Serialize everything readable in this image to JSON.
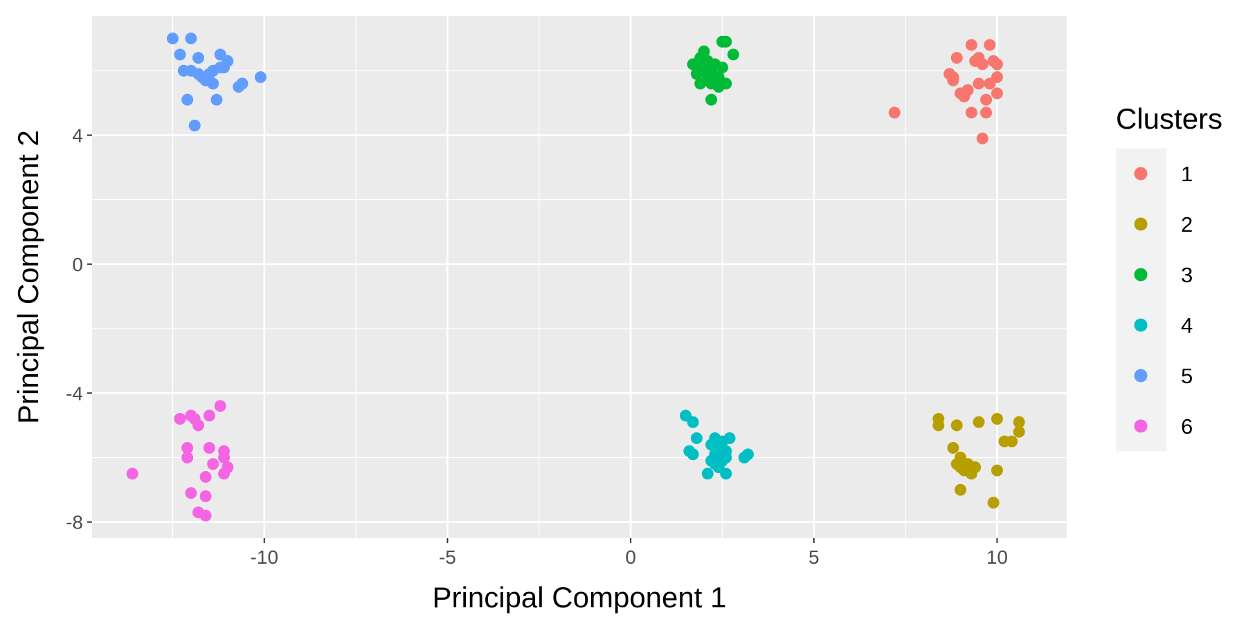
{
  "chart_data": {
    "type": "scatter",
    "title": "",
    "xlabel": "Principal Component 1",
    "ylabel": "Principal Component 2",
    "xlim": [
      -14.7,
      11.9
    ],
    "ylim": [
      -8.5,
      7.7
    ],
    "x_ticks": [
      -10,
      -5,
      0,
      5,
      10
    ],
    "y_ticks": [
      -8,
      -4,
      0,
      4
    ],
    "grid": true,
    "legend": {
      "title": "Clusters",
      "placement": "right"
    },
    "series": [
      {
        "name": "1",
        "color": "#F8766D",
        "points": [
          [
            7.2,
            4.7
          ],
          [
            8.7,
            5.9
          ],
          [
            8.8,
            5.7
          ],
          [
            8.9,
            6.4
          ],
          [
            8.8,
            5.8
          ],
          [
            9.0,
            5.3
          ],
          [
            9.1,
            5.2
          ],
          [
            9.2,
            5.4
          ],
          [
            9.3,
            6.8
          ],
          [
            9.3,
            4.7
          ],
          [
            9.4,
            6.3
          ],
          [
            9.5,
            6.4
          ],
          [
            9.6,
            3.9
          ],
          [
            9.6,
            6.2
          ],
          [
            9.7,
            4.7
          ],
          [
            9.7,
            5.1
          ],
          [
            9.8,
            5.6
          ],
          [
            9.8,
            6.8
          ],
          [
            9.9,
            6.3
          ],
          [
            10.0,
            5.3
          ],
          [
            10.0,
            6.2
          ],
          [
            10.0,
            5.8
          ],
          [
            9.5,
            5.6
          ]
        ]
      },
      {
        "name": "2",
        "color": "#B79F00",
        "points": [
          [
            8.4,
            -4.8
          ],
          [
            8.4,
            -5.0
          ],
          [
            8.8,
            -5.7
          ],
          [
            8.9,
            -5.0
          ],
          [
            8.9,
            -6.2
          ],
          [
            9.0,
            -6.0
          ],
          [
            9.1,
            -6.4
          ],
          [
            9.0,
            -7.0
          ],
          [
            9.2,
            -6.2
          ],
          [
            9.3,
            -6.5
          ],
          [
            9.4,
            -6.3
          ],
          [
            9.5,
            -4.9
          ],
          [
            10.0,
            -6.4
          ],
          [
            9.9,
            -7.4
          ],
          [
            10.0,
            -4.8
          ],
          [
            10.2,
            -5.5
          ],
          [
            10.4,
            -5.5
          ],
          [
            10.6,
            -4.9
          ],
          [
            10.6,
            -5.2
          ],
          [
            9.0,
            -6.3
          ]
        ]
      },
      {
        "name": "3",
        "color": "#00BA38",
        "points": [
          [
            1.7,
            6.2
          ],
          [
            1.8,
            5.9
          ],
          [
            1.9,
            6.4
          ],
          [
            1.9,
            5.6
          ],
          [
            2.0,
            6.6
          ],
          [
            2.0,
            6.1
          ],
          [
            2.1,
            6.3
          ],
          [
            2.1,
            5.8
          ],
          [
            2.2,
            5.1
          ],
          [
            2.2,
            6.0
          ],
          [
            2.3,
            5.7
          ],
          [
            2.3,
            6.2
          ],
          [
            2.4,
            5.8
          ],
          [
            2.4,
            5.5
          ],
          [
            2.5,
            6.1
          ],
          [
            2.5,
            6.9
          ],
          [
            2.6,
            6.9
          ],
          [
            2.6,
            5.6
          ],
          [
            2.8,
            6.5
          ],
          [
            1.9,
            6.0
          ],
          [
            2.2,
            5.6
          ]
        ]
      },
      {
        "name": "4",
        "color": "#00BFC4",
        "points": [
          [
            1.5,
            -4.7
          ],
          [
            1.6,
            -5.8
          ],
          [
            1.7,
            -4.9
          ],
          [
            1.7,
            -5.9
          ],
          [
            1.8,
            -5.4
          ],
          [
            2.1,
            -6.5
          ],
          [
            2.2,
            -5.6
          ],
          [
            2.3,
            -5.4
          ],
          [
            2.3,
            -5.9
          ],
          [
            2.3,
            -6.2
          ],
          [
            2.4,
            -6.0
          ],
          [
            2.4,
            -6.3
          ],
          [
            2.5,
            -5.5
          ],
          [
            2.5,
            -5.7
          ],
          [
            2.5,
            -6.1
          ],
          [
            2.6,
            -5.8
          ],
          [
            2.6,
            -6.5
          ],
          [
            2.6,
            -6.0
          ],
          [
            2.7,
            -5.4
          ],
          [
            3.2,
            -5.9
          ],
          [
            3.1,
            -6.0
          ],
          [
            2.2,
            -6.1
          ]
        ]
      },
      {
        "name": "5",
        "color": "#619CFF",
        "points": [
          [
            -12.5,
            7.0
          ],
          [
            -12.3,
            6.5
          ],
          [
            -12.2,
            6.0
          ],
          [
            -12.1,
            5.1
          ],
          [
            -12.0,
            7.0
          ],
          [
            -12.0,
            6.0
          ],
          [
            -11.9,
            4.3
          ],
          [
            -11.8,
            6.4
          ],
          [
            -11.8,
            5.9
          ],
          [
            -11.7,
            5.8
          ],
          [
            -11.6,
            5.7
          ],
          [
            -11.5,
            5.9
          ],
          [
            -11.4,
            6.0
          ],
          [
            -11.4,
            5.6
          ],
          [
            -11.3,
            5.1
          ],
          [
            -11.2,
            6.5
          ],
          [
            -11.2,
            6.1
          ],
          [
            -11.1,
            6.1
          ],
          [
            -11.0,
            6.3
          ],
          [
            -10.7,
            5.5
          ],
          [
            -10.6,
            5.6
          ],
          [
            -10.1,
            5.8
          ]
        ]
      },
      {
        "name": "6",
        "color": "#F564E3",
        "points": [
          [
            -13.6,
            -6.5
          ],
          [
            -12.3,
            -4.8
          ],
          [
            -12.1,
            -5.7
          ],
          [
            -12.1,
            -6.0
          ],
          [
            -12.0,
            -7.1
          ],
          [
            -12.0,
            -4.7
          ],
          [
            -11.9,
            -4.8
          ],
          [
            -11.8,
            -7.7
          ],
          [
            -11.8,
            -5.0
          ],
          [
            -11.6,
            -6.6
          ],
          [
            -11.6,
            -7.2
          ],
          [
            -11.6,
            -7.8
          ],
          [
            -11.5,
            -4.7
          ],
          [
            -11.5,
            -5.7
          ],
          [
            -11.4,
            -6.2
          ],
          [
            -11.2,
            -4.4
          ],
          [
            -11.1,
            -5.8
          ],
          [
            -11.1,
            -6.0
          ],
          [
            -11.1,
            -6.5
          ],
          [
            -11.0,
            -6.3
          ]
        ]
      }
    ]
  }
}
